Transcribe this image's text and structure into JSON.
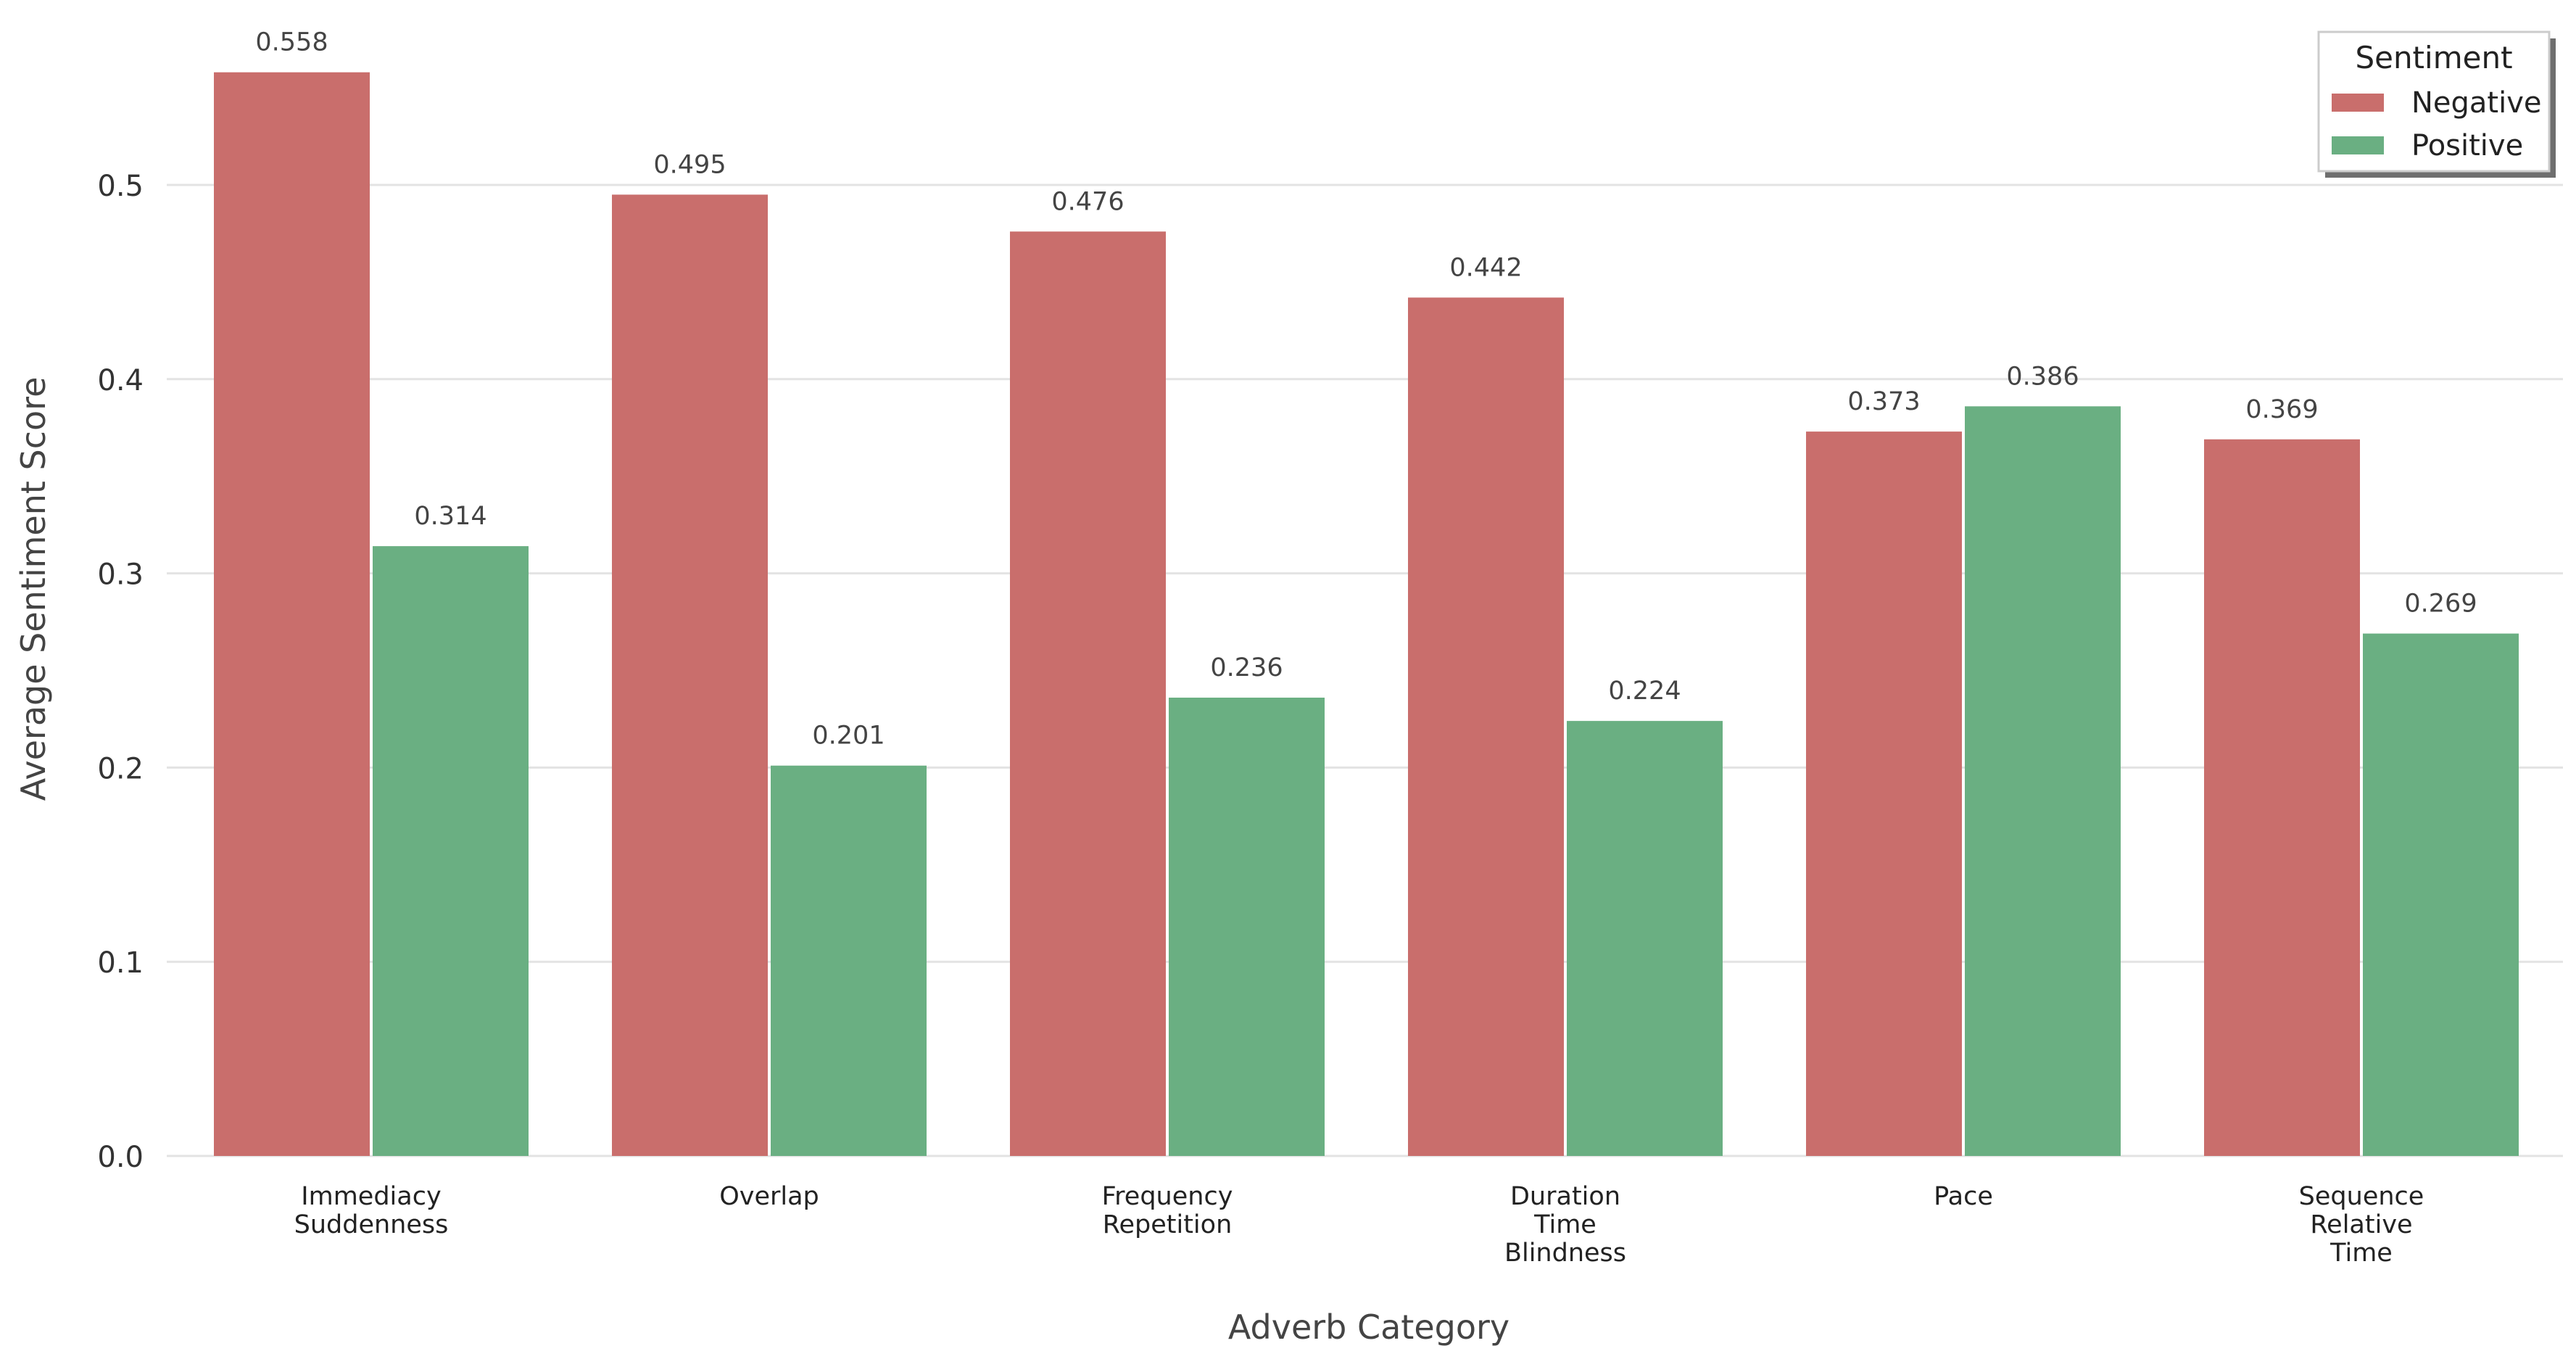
{
  "chart_data": {
    "type": "bar",
    "xlabel": "Adverb Category",
    "ylabel": "Average Sentiment Score",
    "ylim": [
      0,
      0.575
    ],
    "yticks": [
      "0.0",
      "0.1",
      "0.2",
      "0.3",
      "0.4",
      "0.5"
    ],
    "grid": "horizontal",
    "categories": [
      [
        "Immediacy",
        "Suddenness"
      ],
      [
        "Overlap"
      ],
      [
        "Frequency",
        "Repetition"
      ],
      [
        "Duration",
        "Time",
        "Blindness"
      ],
      [
        "Pace"
      ],
      [
        "Sequence",
        "Relative",
        "Time"
      ]
    ],
    "series": [
      {
        "name": "Negative",
        "color": "#c96e6c",
        "values": [
          0.558,
          0.495,
          0.476,
          0.442,
          0.373,
          0.369
        ],
        "labels": [
          "0.558",
          "0.495",
          "0.476",
          "0.442",
          "0.373",
          "0.369"
        ]
      },
      {
        "name": "Positive",
        "color": "#6aaf82",
        "values": [
          0.314,
          0.201,
          0.236,
          0.224,
          0.386,
          0.269
        ],
        "labels": [
          "0.314",
          "0.201",
          "0.236",
          "0.224",
          "0.386",
          "0.269"
        ]
      }
    ],
    "legend": {
      "title": "Sentiment",
      "placement": "top-right"
    }
  }
}
